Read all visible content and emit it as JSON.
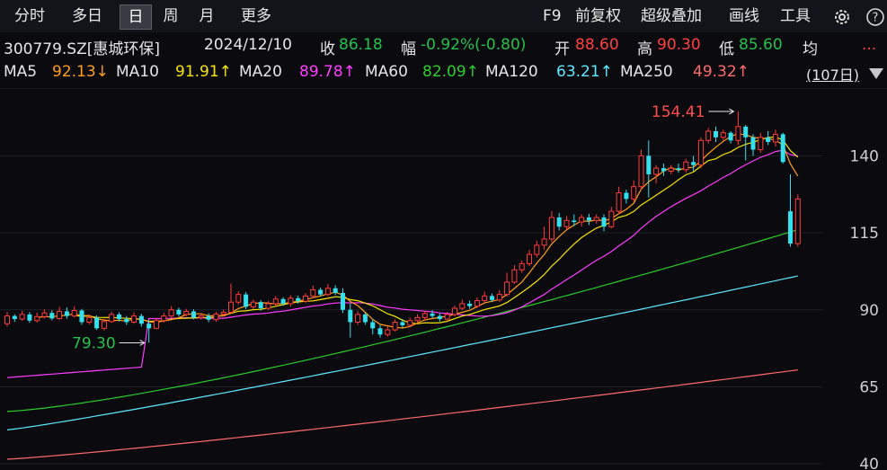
{
  "tabs": [
    "分时",
    "多日",
    "日",
    "周",
    "月",
    "更多"
  ],
  "active_tab": "日",
  "right_tools": [
    "F9",
    "前复权",
    "超级叠加",
    "画线",
    "工具"
  ],
  "icons": [
    "gear-icon",
    "help-icon"
  ],
  "stock": {
    "code": "300779.SZ[惠城环保]",
    "date": "2024/12/10",
    "close_label": "收",
    "close": "86.18",
    "change_label": "幅",
    "change": "-0.92%(-0.80)",
    "open_label": "开",
    "open": "88.60",
    "high_label": "高",
    "high": "90.30",
    "low_label": "低",
    "low": "85.60",
    "avg_label": "均",
    "more": "..."
  },
  "ma_legend": [
    {
      "label": "MA5",
      "value": "92.13↓",
      "color": "#ff9f1c"
    },
    {
      "label": "MA10",
      "value": "91.91↑",
      "color": "#f5e50a"
    },
    {
      "label": "MA20",
      "value": "89.78↑",
      "color": "#ff3cff"
    },
    {
      "label": "MA60",
      "value": "82.09↑",
      "color": "#2dcc2d"
    },
    {
      "label": "MA120",
      "value": "63.21↑",
      "color": "#5fe8ff"
    },
    {
      "label": "MA250",
      "value": "49.32↑",
      "color": "#ff6b6b"
    }
  ],
  "period": "(107日)",
  "colors": {
    "up": "#ff3b3b",
    "down": "#35e0ee",
    "background": "#0b0b0f"
  },
  "chart_data": {
    "type": "candlestick",
    "y_ticks": [
      140,
      115,
      90,
      65,
      40
    ],
    "ylim": [
      38,
      165
    ],
    "annotations": [
      {
        "text": "154.41",
        "price": 154.41,
        "color": "#ff4d4d"
      },
      {
        "text": "79.30",
        "price": 79.3,
        "color": "#27c04c"
      }
    ],
    "candles": [
      [
        85.5,
        88.0,
        89.3,
        84.6
      ],
      [
        88.0,
        87.0,
        88.6,
        86.1
      ],
      [
        87.0,
        88.5,
        89.7,
        86.5
      ],
      [
        88.5,
        86.5,
        89.3,
        85.8
      ],
      [
        86.5,
        87.8,
        89.1,
        85.9
      ],
      [
        87.8,
        89.0,
        90.2,
        87.2
      ],
      [
        89.0,
        87.2,
        89.9,
        86.6
      ],
      [
        87.2,
        89.5,
        91.0,
        86.7
      ],
      [
        89.5,
        88.0,
        90.8,
        87.1
      ],
      [
        88.0,
        89.8,
        91.2,
        87.5
      ],
      [
        89.8,
        86.0,
        90.3,
        85.2
      ],
      [
        86.0,
        87.5,
        88.4,
        85.3
      ],
      [
        87.5,
        84.0,
        88.2,
        83.5
      ],
      [
        84.0,
        86.2,
        87.1,
        83.3
      ],
      [
        86.2,
        88.5,
        89.4,
        85.8
      ],
      [
        88.5,
        87.0,
        89.2,
        86.2
      ],
      [
        87.0,
        86.0,
        88.0,
        85.1
      ],
      [
        86.0,
        88.0,
        89.2,
        85.5
      ],
      [
        88.0,
        85.5,
        88.7,
        84.6
      ],
      [
        85.5,
        84.0,
        86.6,
        79.3
      ],
      [
        84.0,
        86.5,
        87.5,
        83.7
      ],
      [
        86.5,
        88.0,
        89.0,
        85.8
      ],
      [
        88.0,
        90.0,
        91.2,
        87.3
      ],
      [
        90.0,
        88.5,
        90.7,
        87.8
      ],
      [
        88.5,
        89.5,
        90.3,
        87.9
      ],
      [
        89.5,
        87.5,
        90.2,
        86.9
      ],
      [
        87.5,
        88.0,
        89.0,
        86.8
      ],
      [
        88.0,
        86.8,
        88.9,
        86.0
      ],
      [
        86.8,
        88.6,
        89.4,
        86.1
      ],
      [
        88.6,
        89.2,
        90.1,
        87.9
      ],
      [
        89.2,
        92.5,
        98.5,
        88.8
      ],
      [
        92.5,
        95.0,
        96.0,
        91.8
      ],
      [
        95.0,
        91.0,
        95.8,
        90.2
      ],
      [
        91.0,
        92.5,
        93.4,
        90.2
      ],
      [
        92.5,
        90.5,
        93.2,
        89.7
      ],
      [
        90.5,
        92.0,
        92.8,
        89.9
      ],
      [
        92.0,
        93.5,
        94.5,
        91.2
      ],
      [
        93.5,
        92.0,
        94.1,
        91.3
      ],
      [
        92.0,
        93.8,
        94.7,
        91.1
      ],
      [
        93.8,
        92.8,
        94.6,
        92.0
      ],
      [
        92.8,
        94.5,
        95.4,
        92.2
      ],
      [
        94.5,
        96.5,
        97.9,
        93.8
      ],
      [
        96.5,
        95.0,
        97.2,
        94.3
      ],
      [
        95.0,
        97.0,
        98.5,
        94.4
      ],
      [
        97.0,
        95.5,
        98.0,
        94.8
      ],
      [
        95.5,
        90.0,
        97.0,
        89.0
      ],
      [
        90.0,
        86.0,
        92.0,
        81.0
      ],
      [
        86.0,
        88.5,
        89.6,
        85.1
      ],
      [
        88.5,
        86.0,
        89.1,
        85.2
      ],
      [
        86.0,
        84.0,
        87.0,
        82.0
      ],
      [
        84.0,
        82.0,
        85.0,
        81.0
      ],
      [
        82.0,
        83.5,
        84.6,
        81.3
      ],
      [
        83.5,
        86.0,
        86.9,
        83.0
      ],
      [
        86.0,
        85.0,
        87.0,
        84.2
      ],
      [
        85.0,
        86.5,
        87.4,
        84.3
      ],
      [
        86.5,
        87.5,
        88.6,
        85.8
      ],
      [
        87.5,
        88.8,
        89.8,
        86.7
      ],
      [
        88.8,
        88.0,
        89.9,
        87.3
      ],
      [
        88.0,
        87.0,
        88.8,
        86.2
      ],
      [
        87.0,
        88.5,
        89.4,
        86.3
      ],
      [
        88.5,
        90.5,
        91.4,
        87.9
      ],
      [
        90.5,
        92.0,
        93.3,
        89.9
      ],
      [
        92.0,
        91.2,
        93.0,
        90.3
      ],
      [
        91.2,
        93.0,
        94.0,
        90.6
      ],
      [
        93.0,
        94.5,
        95.9,
        92.4
      ],
      [
        94.5,
        93.2,
        95.3,
        92.5
      ],
      [
        93.2,
        95.0,
        96.4,
        92.6
      ],
      [
        95.0,
        99.0,
        102.0,
        94.3
      ],
      [
        99.0,
        103.0,
        104.5,
        98.4
      ],
      [
        103.0,
        105.0,
        106.0,
        102.0
      ],
      [
        105.0,
        108.0,
        109.5,
        104.2
      ],
      [
        108.0,
        111.0,
        112.5,
        107.0
      ],
      [
        111.0,
        113.0,
        117.0,
        109.5
      ],
      [
        113.0,
        120.0,
        122.0,
        112.0
      ],
      [
        120.0,
        117.0,
        121.5,
        115.8
      ],
      [
        117.0,
        119.0,
        120.5,
        116.0
      ],
      [
        119.0,
        118.5,
        121.0,
        117.2
      ],
      [
        118.5,
        120.0,
        121.0,
        117.0
      ],
      [
        120.0,
        119.0,
        121.2,
        117.5
      ],
      [
        119.0,
        120.0,
        121.0,
        118.0
      ],
      [
        120.0,
        117.0,
        121.0,
        115.5
      ],
      [
        117.0,
        122.0,
        123.5,
        116.5
      ],
      [
        122.0,
        128.0,
        130.0,
        121.0
      ],
      [
        128.0,
        126.0,
        129.0,
        124.5
      ],
      [
        126.0,
        130.0,
        132.0,
        125.0
      ],
      [
        130.0,
        140.0,
        142.0,
        129.0
      ],
      [
        140.0,
        134.0,
        145.0,
        126.5
      ],
      [
        134.0,
        136.0,
        137.0,
        131.0
      ],
      [
        136.0,
        135.0,
        137.5,
        133.5
      ],
      [
        135.0,
        136.0,
        137.0,
        134.0
      ],
      [
        136.0,
        135.5,
        137.5,
        134.5
      ],
      [
        135.5,
        138.0,
        139.0,
        134.5
      ],
      [
        138.0,
        137.0,
        140.0,
        135.0
      ],
      [
        137.0,
        145.0,
        146.0,
        136.0
      ],
      [
        145.0,
        148.0,
        149.0,
        144.0
      ],
      [
        148.0,
        146.0,
        149.5,
        144.5
      ],
      [
        146.0,
        147.5,
        148.5,
        145.0
      ],
      [
        147.5,
        145.0,
        148.0,
        144.0
      ],
      [
        145.0,
        149.5,
        154.41,
        143.5
      ],
      [
        149.5,
        146.0,
        150.0,
        138.5
      ],
      [
        146.0,
        142.0,
        147.0,
        140.0
      ],
      [
        142.0,
        146.0,
        147.5,
        141.0
      ],
      [
        146.0,
        144.5,
        148.0,
        143.5
      ],
      [
        144.5,
        147.0,
        148.5,
        143.0
      ],
      [
        147.0,
        138.0,
        147.5,
        137.5
      ],
      [
        122.0,
        111.5,
        134.0,
        110.5
      ],
      [
        111.5,
        126.0,
        127.5,
        110.5
      ]
    ]
  }
}
